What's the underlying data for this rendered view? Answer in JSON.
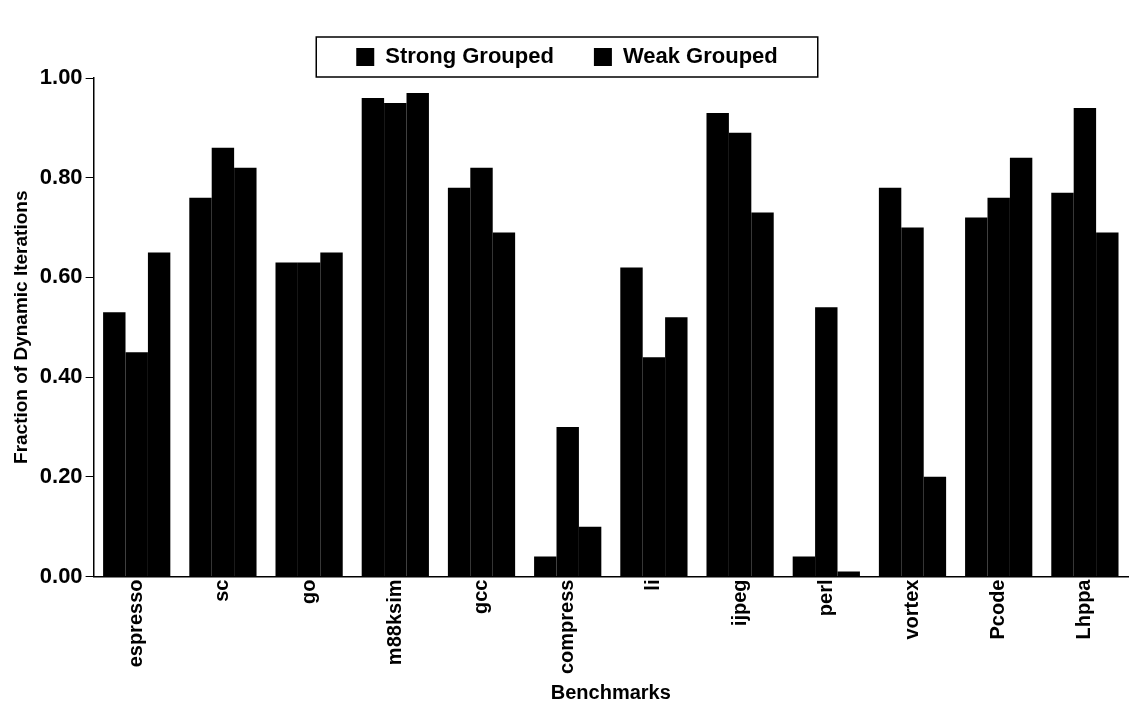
{
  "chart_data": {
    "type": "bar",
    "xlabel": "Benchmarks",
    "ylabel": "Fraction of Dynamic Iterations",
    "categories": [
      "espresso",
      "sc",
      "go",
      "m88ksim",
      "gcc",
      "compress",
      "li",
      "ijpeg",
      "perl",
      "vortex",
      "Pcode",
      "Lhppa"
    ],
    "series": [
      {
        "name": "Strong Grouped",
        "color": "#000000",
        "values": [
          0.53,
          0.76,
          0.63,
          0.96,
          0.78,
          0.04,
          0.62,
          0.93,
          0.04,
          0.78,
          0.72,
          0.77
        ]
      },
      {
        "name": "Weak Grouped",
        "color": "#000000",
        "values": [
          0.45,
          0.86,
          0.63,
          0.95,
          0.82,
          0.3,
          0.44,
          0.89,
          0.54,
          0.7,
          0.76,
          0.94
        ]
      },
      {
        "color": "#000000",
        "values": [
          0.65,
          0.82,
          0.65,
          0.97,
          0.69,
          0.1,
          0.52,
          0.73,
          0.01,
          0.2,
          0.84,
          0.69
        ]
      }
    ],
    "ylim": [
      0,
      1
    ],
    "yticks": [
      {
        "value": 0,
        "label": "0.00"
      },
      {
        "value": 0.2,
        "label": "0.20"
      },
      {
        "value": 0.4,
        "label": "0.40"
      },
      {
        "value": 0.6,
        "label": "0.60"
      },
      {
        "value": 0.8,
        "label": "0.80"
      },
      {
        "value": 1,
        "label": "1.00"
      }
    ],
    "grid": false,
    "legend": "top"
  }
}
